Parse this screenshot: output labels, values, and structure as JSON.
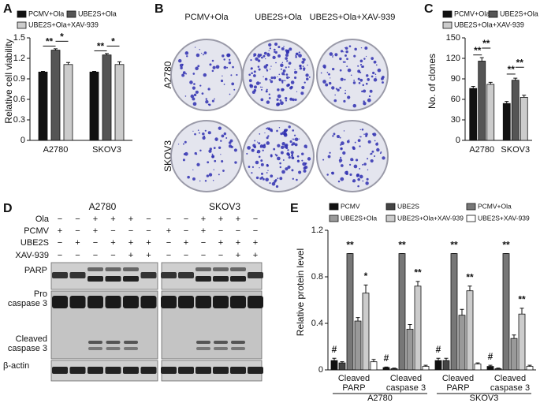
{
  "panel_labels": [
    "A",
    "B",
    "C",
    "D",
    "E"
  ],
  "chart_data": [
    {
      "type": "bar",
      "ylabel": "Relative cell viability",
      "categories": [
        "A2780",
        "SKOV3"
      ],
      "series": [
        {
          "name": "PCMV+Ola",
          "color": "#111111",
          "values": [
            1.0,
            1.0
          ],
          "errors": [
            0.01,
            0.01
          ]
        },
        {
          "name": "UBE2S+Ola",
          "color": "#555555",
          "values": [
            1.32,
            1.25
          ],
          "errors": [
            0.02,
            0.02
          ]
        },
        {
          "name": "UBE2S+Ola+XAV-939",
          "color": "#cccccc",
          "values": [
            1.11,
            1.11
          ],
          "errors": [
            0.03,
            0.04
          ]
        }
      ],
      "ylim": [
        0,
        1.5
      ],
      "yticks": [
        0,
        0.3,
        0.6,
        0.9,
        1.2,
        1.5
      ],
      "legend": "top",
      "annotations": [
        "**",
        "*",
        "**",
        "*"
      ]
    },
    {
      "type": "bar",
      "ylabel": "No. of clones",
      "categories": [
        "A2780",
        "SKOV3"
      ],
      "series": [
        {
          "name": "PCMV+Ola",
          "color": "#111111",
          "values": [
            76,
            54
          ],
          "errors": [
            3,
            3
          ]
        },
        {
          "name": "UBE2S+Ola",
          "color": "#555555",
          "values": [
            116,
            88
          ],
          "errors": [
            5,
            3
          ]
        },
        {
          "name": "UBE2S+Ola+XAV-939",
          "color": "#cccccc",
          "values": [
            82,
            63
          ],
          "errors": [
            3,
            3
          ]
        }
      ],
      "ylim": [
        0,
        150
      ],
      "yticks": [
        0,
        30,
        60,
        90,
        120,
        150
      ],
      "legend": "top",
      "annotations": [
        "**",
        "**",
        "**",
        "**"
      ]
    },
    {
      "type": "bar",
      "ylabel": "Relative protein level",
      "categories": [
        "Cleaved\nPARP",
        "Cleaved\ncaspase 3",
        "Cleaved\nPARP",
        "Cleaved\ncaspase 3"
      ],
      "category_groups": [
        "A2780",
        "SKOV3"
      ],
      "series": [
        {
          "name": "PCMV",
          "color": "#111111",
          "values": [
            0.08,
            0.02,
            0.08,
            0.03
          ],
          "errors": [
            0.02,
            0.005,
            0.02,
            0.01
          ]
        },
        {
          "name": "UBE2S",
          "color": "#444444",
          "values": [
            0.06,
            0.01,
            0.08,
            0.01
          ],
          "errors": [
            0.01,
            0.005,
            0.02,
            0.005
          ]
        },
        {
          "name": "PCMV+Ola",
          "color": "#777777",
          "values": [
            1.0,
            1.0,
            1.0,
            1.0
          ],
          "errors": [
            0,
            0,
            0,
            0
          ]
        },
        {
          "name": "UBE2S+Ola",
          "color": "#999999",
          "values": [
            0.42,
            0.35,
            0.47,
            0.27
          ],
          "errors": [
            0.03,
            0.04,
            0.05,
            0.03
          ]
        },
        {
          "name": "UBE2S+Ola+XAV-939",
          "color": "#cccccc",
          "values": [
            0.66,
            0.72,
            0.68,
            0.48
          ],
          "errors": [
            0.07,
            0.04,
            0.04,
            0.05
          ]
        },
        {
          "name": "UBE2S+XAV-939",
          "color": "#ffffff",
          "values": [
            0.07,
            0.03,
            0.05,
            0.03
          ],
          "errors": [
            0.02,
            0.01,
            0.01,
            0.01
          ]
        }
      ],
      "ylim": [
        0,
        1.2
      ],
      "yticks": [
        0,
        0.4,
        0.8,
        1.2
      ],
      "legend": "top",
      "annotations": [
        "#",
        "**",
        "*",
        "#",
        "**",
        "**",
        "#",
        "**",
        "**",
        "#",
        "**",
        "**"
      ]
    }
  ],
  "colony_panel": {
    "columns": [
      "PCMV+Ola",
      "UBE2S+Ola",
      "UBE2S+Ola+XAV-939"
    ],
    "rows": [
      "A2780",
      "SKOV3"
    ]
  },
  "blot_panel": {
    "cell_lines": [
      "A2780",
      "SKOV3"
    ],
    "treatments": [
      {
        "name": "Ola",
        "lanes": [
          "−",
          "−",
          "+",
          "+",
          "+",
          "−",
          "−",
          "−",
          "+",
          "+",
          "+",
          "−"
        ]
      },
      {
        "name": "PCMV",
        "lanes": [
          "+",
          "−",
          "+",
          "−",
          "−",
          "−",
          "+",
          "−",
          "+",
          "−",
          "−",
          "−"
        ]
      },
      {
        "name": "UBE2S",
        "lanes": [
          "−",
          "+",
          "−",
          "+",
          "+",
          "+",
          "−",
          "+",
          "−",
          "+",
          "+",
          "+"
        ]
      },
      {
        "name": "XAV-939",
        "lanes": [
          "−",
          "−",
          "−",
          "−",
          "+",
          "+",
          "−",
          "−",
          "−",
          "−",
          "+",
          "+"
        ]
      }
    ],
    "bands": [
      "PARP",
      "Pro\ncaspase 3",
      "Cleaved\ncaspase 3",
      "β-actin"
    ]
  }
}
